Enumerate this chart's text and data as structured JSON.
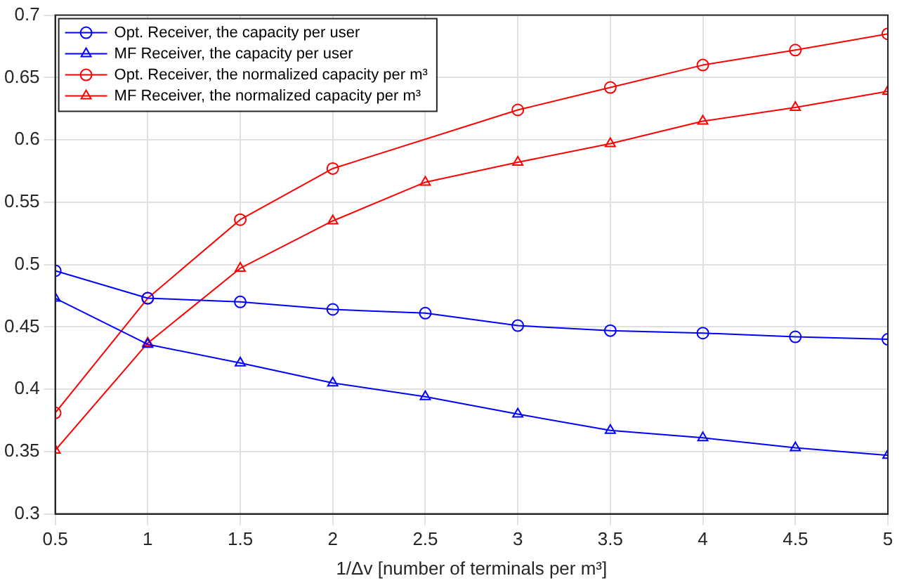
{
  "chart_data": {
    "type": "line",
    "xlabel": "1/Δv [number of terminals per m³]",
    "x": [
      0.5,
      1,
      1.5,
      2,
      2.5,
      3,
      3.5,
      4,
      4.5,
      5
    ],
    "series": [
      {
        "name": "Opt. Receiver, the capacity per user",
        "color": "#0000ff",
        "marker": "circle",
        "values": [
          0.495,
          0.473,
          0.47,
          0.464,
          0.461,
          0.451,
          0.447,
          0.445,
          0.442,
          0.44
        ]
      },
      {
        "name": "MF Receiver, the capacity per user",
        "color": "#0000ff",
        "marker": "triangle",
        "values": [
          0.473,
          0.436,
          0.421,
          0.405,
          0.394,
          0.38,
          0.367,
          0.361,
          0.353,
          0.347
        ]
      },
      {
        "name": "Opt. Receiver, the normalized capacity per m³",
        "color": "#ff0000",
        "marker": "circle",
        "values": [
          0.381,
          0.473,
          0.536,
          0.577,
          null,
          0.624,
          0.642,
          0.66,
          0.672,
          0.685
        ]
      },
      {
        "name": "MF Receiver, the normalized capacity per m³",
        "color": "#ff0000",
        "marker": "triangle",
        "values": [
          0.351,
          0.437,
          0.497,
          0.535,
          0.566,
          0.582,
          0.597,
          0.615,
          0.626,
          0.639
        ]
      }
    ],
    "xlim": [
      0.5,
      5
    ],
    "xticks": [
      0.5,
      1,
      1.5,
      2,
      2.5,
      3,
      3.5,
      4,
      4.5,
      5
    ],
    "ylim": [
      0.3,
      0.7
    ],
    "yticks": [
      0.3,
      0.35,
      0.4,
      0.45,
      0.5,
      0.55,
      0.6,
      0.65,
      0.7
    ],
    "grid": true,
    "legend": "top left",
    "line_style": "solid"
  }
}
